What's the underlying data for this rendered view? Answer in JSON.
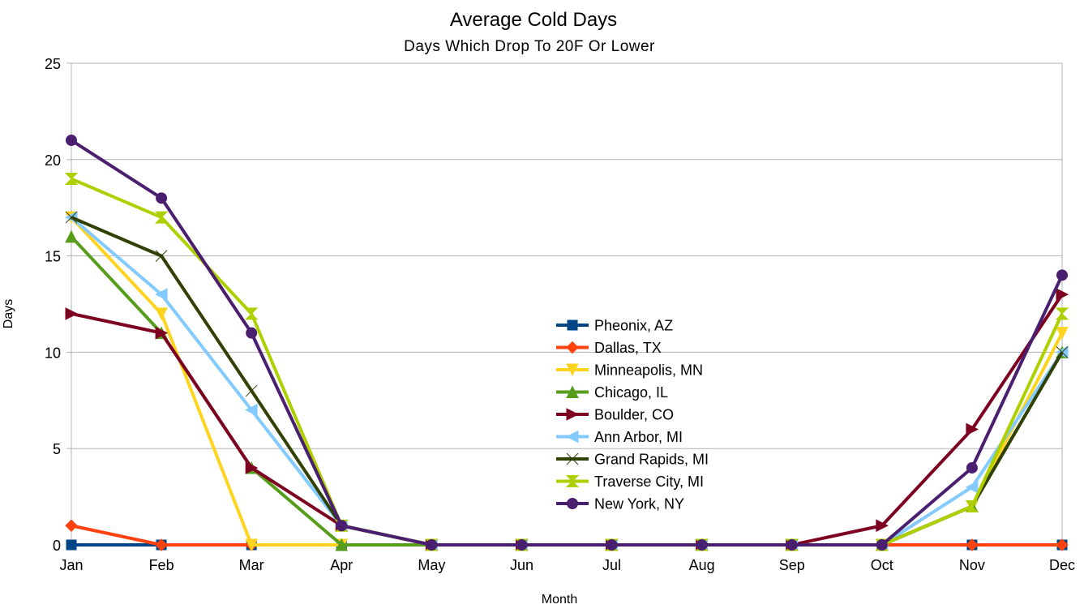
{
  "chart_data": {
    "type": "line",
    "title": "Average Cold Days",
    "subtitle": "Days Which Drop To 20F Or Lower",
    "xlabel": "Month",
    "ylabel": "Days",
    "ylim": [
      0,
      25
    ],
    "yticks": [
      0,
      5,
      10,
      15,
      20,
      25
    ],
    "grid": true,
    "legend": "center",
    "categories": [
      "Jan",
      "Feb",
      "Mar",
      "Apr",
      "May",
      "Jun",
      "Jul",
      "Aug",
      "Sep",
      "Oct",
      "Nov",
      "Dec"
    ],
    "series": [
      {
        "name": "Pheonix, AZ",
        "color": "#004586",
        "marker": "square",
        "values": [
          0,
          0,
          0,
          0,
          0,
          0,
          0,
          0,
          0,
          0,
          0,
          0
        ]
      },
      {
        "name": "Dallas, TX",
        "color": "#ff420e",
        "marker": "diamond",
        "values": [
          1,
          0,
          0,
          0,
          0,
          0,
          0,
          0,
          0,
          0,
          0,
          0
        ]
      },
      {
        "name": "Minneapolis, MN",
        "color": "#ffd320",
        "marker": "triangle-down",
        "values": [
          17,
          12,
          0,
          0,
          0,
          0,
          0,
          0,
          0,
          0,
          2,
          11
        ]
      },
      {
        "name": "Chicago, IL",
        "color": "#579d1c",
        "marker": "triangle-up",
        "values": [
          16,
          11,
          4,
          0,
          0,
          0,
          0,
          0,
          0,
          0,
          2,
          10
        ]
      },
      {
        "name": "Boulder, CO",
        "color": "#7e0021",
        "marker": "triangle-right",
        "values": [
          12,
          11,
          4,
          1,
          0,
          0,
          0,
          0,
          0,
          1,
          6,
          13
        ]
      },
      {
        "name": "Ann Arbor, MI",
        "color": "#83caff",
        "marker": "triangle-left",
        "values": [
          17,
          13,
          7,
          1,
          0,
          0,
          0,
          0,
          0,
          0,
          3,
          10
        ]
      },
      {
        "name": "Grand Rapids, MI",
        "color": "#314004",
        "marker": "bowtie",
        "values": [
          17,
          15,
          8,
          1,
          0,
          0,
          0,
          0,
          0,
          0,
          2,
          10
        ]
      },
      {
        "name": "Traverse City, MI",
        "color": "#aecf00",
        "marker": "hourglass",
        "values": [
          19,
          17,
          12,
          1,
          0,
          0,
          0,
          0,
          0,
          0,
          2,
          12
        ]
      },
      {
        "name": "New York, NY",
        "color": "#4b1f6f",
        "marker": "circle",
        "values": [
          21,
          18,
          11,
          1,
          0,
          0,
          0,
          0,
          0,
          0,
          4,
          14
        ]
      }
    ]
  }
}
